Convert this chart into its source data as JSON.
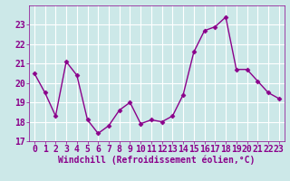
{
  "x": [
    0,
    1,
    2,
    3,
    4,
    5,
    6,
    7,
    8,
    9,
    10,
    11,
    12,
    13,
    14,
    15,
    16,
    17,
    18,
    19,
    20,
    21,
    22,
    23
  ],
  "y": [
    20.5,
    19.5,
    18.3,
    21.1,
    20.4,
    18.1,
    17.4,
    17.8,
    18.6,
    19.0,
    17.9,
    18.1,
    18.0,
    18.3,
    19.4,
    21.6,
    22.7,
    22.9,
    23.4,
    20.7,
    20.7,
    20.1,
    19.5,
    19.2
  ],
  "line_color": "#8B008B",
  "marker": "D",
  "marker_size": 2.5,
  "line_width": 1.0,
  "bg_color": "#cce8e8",
  "grid_color": "#b0d0d0",
  "xlabel": "Windchill (Refroidissement éolien,°C)",
  "xlabel_fontsize": 7,
  "tick_fontsize": 7,
  "ylim": [
    17,
    24
  ],
  "xlim": [
    -0.5,
    23.5
  ],
  "yticks": [
    17,
    18,
    19,
    20,
    21,
    22,
    23
  ],
  "xticks": [
    0,
    1,
    2,
    3,
    4,
    5,
    6,
    7,
    8,
    9,
    10,
    11,
    12,
    13,
    14,
    15,
    16,
    17,
    18,
    19,
    20,
    21,
    22,
    23
  ]
}
